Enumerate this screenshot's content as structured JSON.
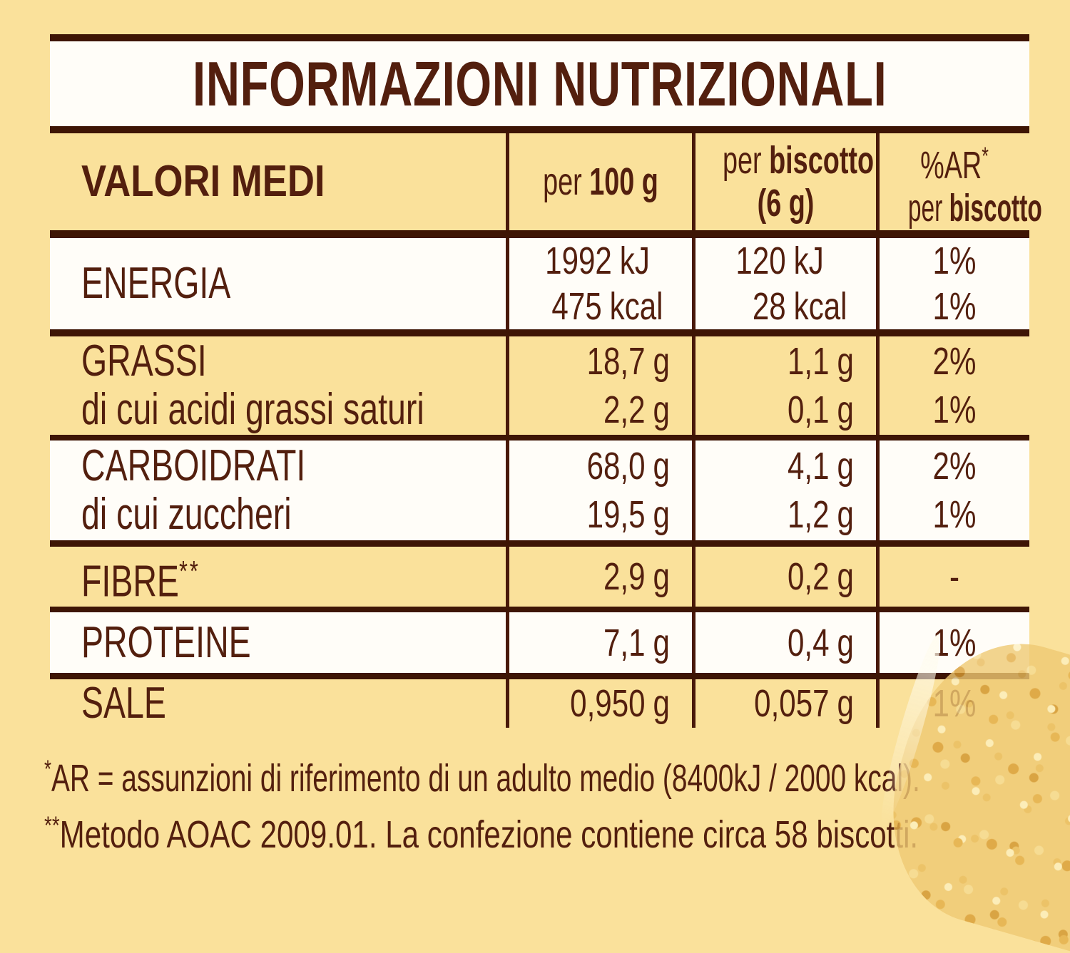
{
  "colors": {
    "page_bg": "#fae19b",
    "panel_white": "#fffdf8",
    "text_brown": "#531f0e",
    "rule_brown": "#3e1505"
  },
  "title": "INFORMAZIONI NUTRIZIONALI",
  "table": {
    "header": {
      "rows_label": "VALORI MEDI",
      "per100": {
        "prefix": "per ",
        "bold": "100 g"
      },
      "per_biscotto": {
        "prefix": "per ",
        "bold": "biscotto",
        "line2": "(6 g)"
      },
      "ar": {
        "line1": "%AR",
        "line1_sup": "*",
        "line2_prefix": "per ",
        "line2_bold": "biscotto"
      }
    },
    "rows": [
      {
        "label": "ENERGIA",
        "per100": [
          {
            "num": "1992",
            "unit": "kJ"
          },
          {
            "num": "475",
            "unit": "kcal"
          }
        ],
        "per_biscotto": [
          {
            "num": "120",
            "unit": "kJ"
          },
          {
            "num": "28",
            "unit": "kcal"
          }
        ],
        "ar": [
          "1%",
          "1%"
        ]
      },
      {
        "label": "GRASSI",
        "sub": "di cui acidi grassi saturi",
        "per100": [
          {
            "num": "18,7",
            "unit": "g"
          },
          {
            "num": "2,2",
            "unit": "g"
          }
        ],
        "per_biscotto": [
          {
            "num": "1,1",
            "unit": "g"
          },
          {
            "num": "0,1",
            "unit": "g"
          }
        ],
        "ar": [
          "2%",
          "1%"
        ]
      },
      {
        "label": "CARBOIDRATI",
        "sub": "di cui zuccheri",
        "per100": [
          {
            "num": "68,0",
            "unit": "g"
          },
          {
            "num": "19,5",
            "unit": "g"
          }
        ],
        "per_biscotto": [
          {
            "num": "4,1",
            "unit": "g"
          },
          {
            "num": "1,2",
            "unit": "g"
          }
        ],
        "ar": [
          "2%",
          "1%"
        ]
      },
      {
        "label": "FIBRE",
        "label_sup": "**",
        "per100": [
          {
            "num": "2,9",
            "unit": "g"
          }
        ],
        "per_biscotto": [
          {
            "num": "0,2",
            "unit": "g"
          }
        ],
        "ar": [
          "-"
        ]
      },
      {
        "label": "PROTEINE",
        "per100": [
          {
            "num": "7,1",
            "unit": "g"
          }
        ],
        "per_biscotto": [
          {
            "num": "0,4",
            "unit": "g"
          }
        ],
        "ar": [
          "1%"
        ]
      },
      {
        "label": "SALE",
        "per100": [
          {
            "num": "0,950",
            "unit": "g"
          }
        ],
        "per_biscotto": [
          {
            "num": "0,057",
            "unit": "g"
          }
        ],
        "ar": [
          "1%"
        ]
      }
    ]
  },
  "footnotes": [
    {
      "sup": "*",
      "text": "AR = assunzioni di riferimento di un adulto medio (8400kJ / 2000 kcal)."
    },
    {
      "sup": "**",
      "text": "Metodo AOAC 2009.01. La confezione contiene circa 58 biscotti."
    }
  ]
}
